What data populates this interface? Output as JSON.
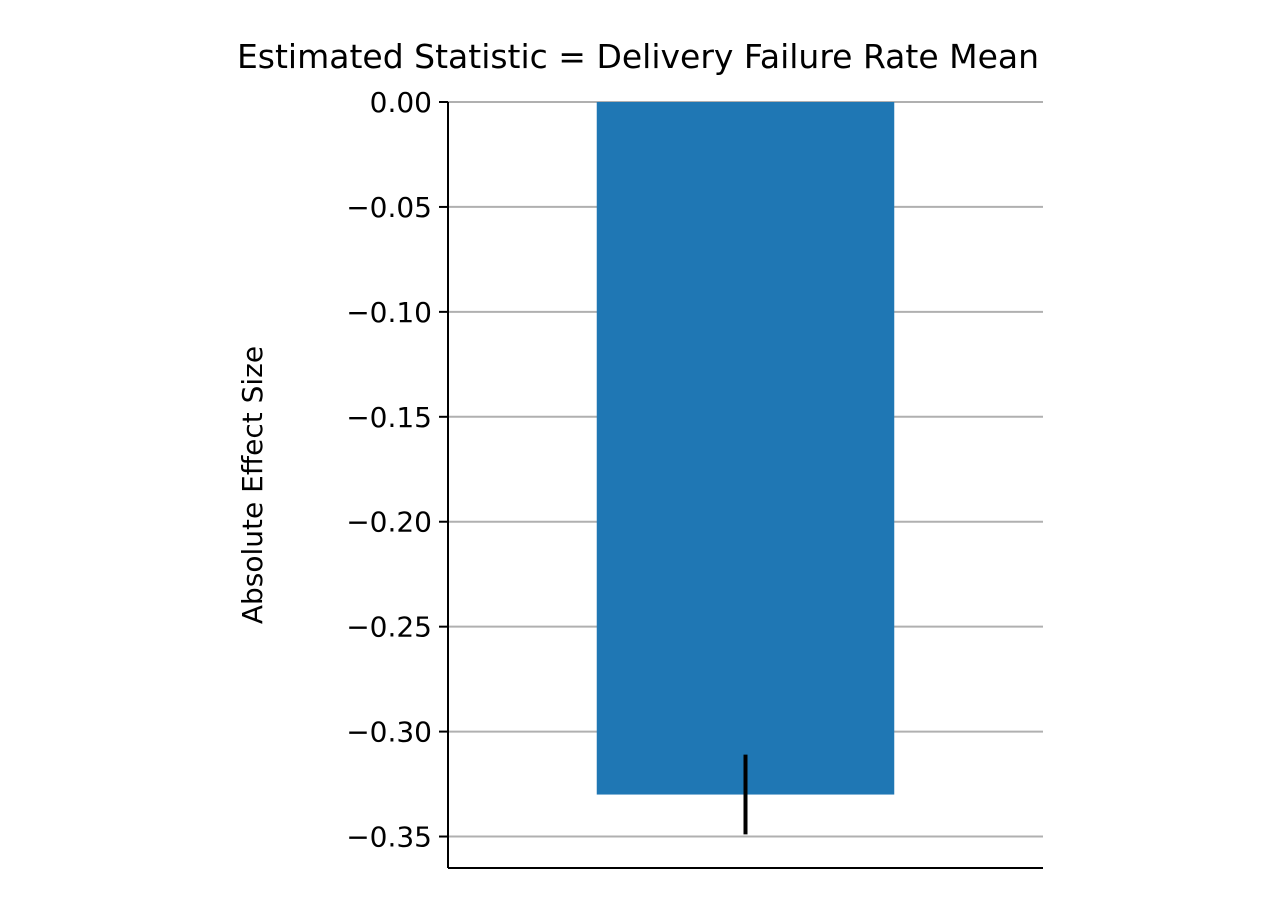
{
  "chart_data": {
    "type": "bar",
    "title": "Estimated Statistic = Delivery Failure Rate Mean",
    "xlabel": "",
    "ylabel": "Absolute Effect Size",
    "categories": [
      ""
    ],
    "values": [
      -0.33
    ],
    "error_bars": [
      {
        "low": -0.349,
        "high": -0.311
      }
    ],
    "ylim": [
      -0.365,
      0.0
    ],
    "yticks": [
      0.0,
      -0.05,
      -0.1,
      -0.15,
      -0.2,
      -0.25,
      -0.3,
      -0.35
    ],
    "ytick_labels": [
      "0.00",
      "−0.05",
      "−0.10",
      "−0.15",
      "−0.20",
      "−0.25",
      "−0.30",
      "−0.35"
    ],
    "grid": "horizontal",
    "legend": "none",
    "colors": {
      "bar": "#1f77b4",
      "grid": "#b0b0b0",
      "axis": "#000000",
      "error": "#000000"
    }
  }
}
